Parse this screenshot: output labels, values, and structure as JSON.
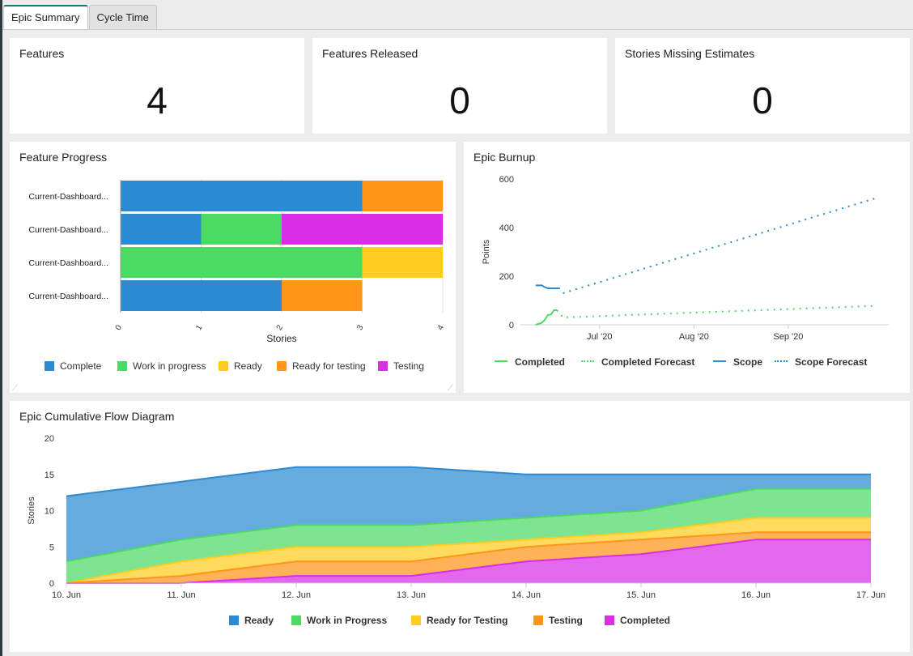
{
  "tabs": [
    {
      "label": "Epic Summary",
      "active": true
    },
    {
      "label": "Cycle Time",
      "active": false
    }
  ],
  "kpis": [
    {
      "title": "Features",
      "value": "4"
    },
    {
      "title": "Features Released",
      "value": "0"
    },
    {
      "title": "Stories Missing Estimates",
      "value": "0"
    }
  ],
  "feature_progress": {
    "title": "Feature Progress",
    "chart_data": {
      "type": "bar",
      "orientation": "horizontal",
      "stacked": true,
      "categories": [
        "Current-Dashboard...",
        "Current-Dashboard...",
        "Current-Dashboard...",
        "Current-Dashboard..."
      ],
      "series": [
        {
          "name": "Complete",
          "color": "#2b8ad1",
          "values": [
            3,
            1,
            0,
            2
          ]
        },
        {
          "name": "Work in progress",
          "color": "#4cd964",
          "values": [
            0,
            1,
            3,
            0
          ]
        },
        {
          "name": "Ready",
          "color": "#ffcc1f",
          "values": [
            0,
            0,
            1,
            0
          ]
        },
        {
          "name": "Ready for testing",
          "color": "#ff9519",
          "values": [
            1,
            0,
            0,
            1
          ]
        },
        {
          "name": "Testing",
          "color": "#d92ee6",
          "values": [
            0,
            2,
            0,
            0
          ]
        }
      ],
      "xlabel": "Stories",
      "xticks": [
        "0",
        "1",
        "2",
        "3",
        "4"
      ],
      "xlim": [
        0,
        4
      ],
      "grid": true,
      "legend": "bottom"
    }
  },
  "epic_burnup": {
    "title": "Epic Burnup",
    "chart_data": {
      "type": "line",
      "ylabel": "Points",
      "ylim": [
        0,
        600
      ],
      "yticks": [
        "0",
        "200",
        "400",
        "600"
      ],
      "xticks": [
        "Jul '20",
        "Aug '20",
        "Sep '20"
      ],
      "series": [
        {
          "name": "Completed",
          "color": "#4cd964",
          "style": "solid",
          "x": [
            "2020-06-10",
            "2020-06-12",
            "2020-06-13",
            "2020-06-14",
            "2020-06-15",
            "2020-06-16",
            "2020-06-17"
          ],
          "y": [
            0,
            8,
            20,
            40,
            42,
            60,
            60
          ]
        },
        {
          "name": "Completed Forecast",
          "color": "#4cd964",
          "style": "dotted",
          "x": [
            "2020-06-17",
            "2020-06-19",
            "2020-09-30"
          ],
          "y": [
            60,
            30,
            78
          ]
        },
        {
          "name": "Scope",
          "color": "#2b8ad1",
          "style": "solid",
          "x": [
            "2020-06-10",
            "2020-06-12",
            "2020-06-13",
            "2020-06-14",
            "2020-06-16",
            "2020-06-18"
          ],
          "y": [
            162,
            162,
            155,
            150,
            150,
            150
          ]
        },
        {
          "name": "Scope Forecast",
          "color": "#2b8ad1",
          "style": "dotted",
          "x": [
            "2020-06-19",
            "2020-09-30"
          ],
          "y": [
            130,
            522
          ]
        }
      ],
      "legend": "bottom"
    }
  },
  "cumulative_flow": {
    "title": "Epic Cumulative Flow Diagram",
    "chart_data": {
      "type": "area",
      "stacked": true,
      "ylabel": "Stories",
      "ylim": [
        0,
        20
      ],
      "yticks": [
        "0",
        "5",
        "10",
        "15",
        "20"
      ],
      "categories": [
        "10. Jun",
        "11. Jun",
        "12. Jun",
        "13. Jun",
        "14. Jun",
        "15. Jun",
        "16. Jun",
        "17. Jun"
      ],
      "series": [
        {
          "name": "Ready",
          "color": "#2b8ad1",
          "values": [
            9,
            8,
            8,
            8,
            6,
            5,
            2,
            2
          ]
        },
        {
          "name": "Work in Progress",
          "color": "#4cd964",
          "values": [
            3,
            3,
            3,
            3,
            3,
            3,
            4,
            4
          ]
        },
        {
          "name": "Ready for Testing",
          "color": "#ffcc1f",
          "values": [
            0,
            2,
            2,
            2,
            1,
            1,
            2,
            2
          ]
        },
        {
          "name": "Testing",
          "color": "#ff9519",
          "values": [
            0,
            1,
            2,
            2,
            2,
            2,
            1,
            1
          ]
        },
        {
          "name": "Completed",
          "color": "#d92ee6",
          "values": [
            0,
            0,
            1,
            1,
            3,
            4,
            6,
            6
          ]
        }
      ],
      "legend": "bottom"
    }
  }
}
